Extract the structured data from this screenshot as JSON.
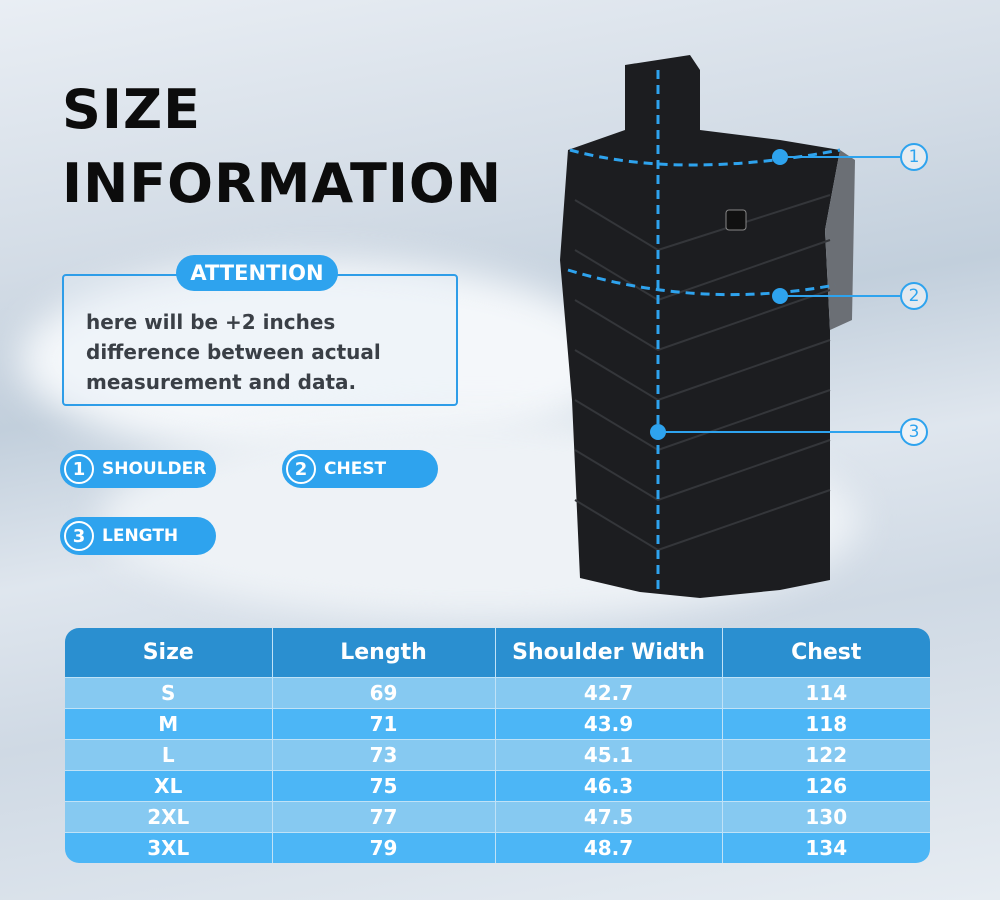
{
  "title": {
    "line1": "SIZE",
    "line2": "INFORMATION"
  },
  "attention": {
    "label": "ATTENTION",
    "text": "here will be +2 inches difference between actual measurement and data."
  },
  "legend": [
    {
      "num": "1",
      "label": "SHOULDER"
    },
    {
      "num": "2",
      "label": "CHEST"
    },
    {
      "num": "3",
      "label": "LENGTH"
    }
  ],
  "callouts": [
    "1",
    "2",
    "3"
  ],
  "accent_color": "#2ea3ee",
  "table": {
    "headers": [
      "Size",
      "Length",
      "Shoulder Width",
      "Chest"
    ],
    "rows": [
      [
        "S",
        "69",
        "42.7",
        "114"
      ],
      [
        "M",
        "71",
        "43.9",
        "118"
      ],
      [
        "L",
        "73",
        "45.1",
        "122"
      ],
      [
        "XL",
        "75",
        "46.3",
        "126"
      ],
      [
        "2XL",
        "77",
        "47.5",
        "130"
      ],
      [
        "3XL",
        "79",
        "48.7",
        "134"
      ]
    ]
  }
}
